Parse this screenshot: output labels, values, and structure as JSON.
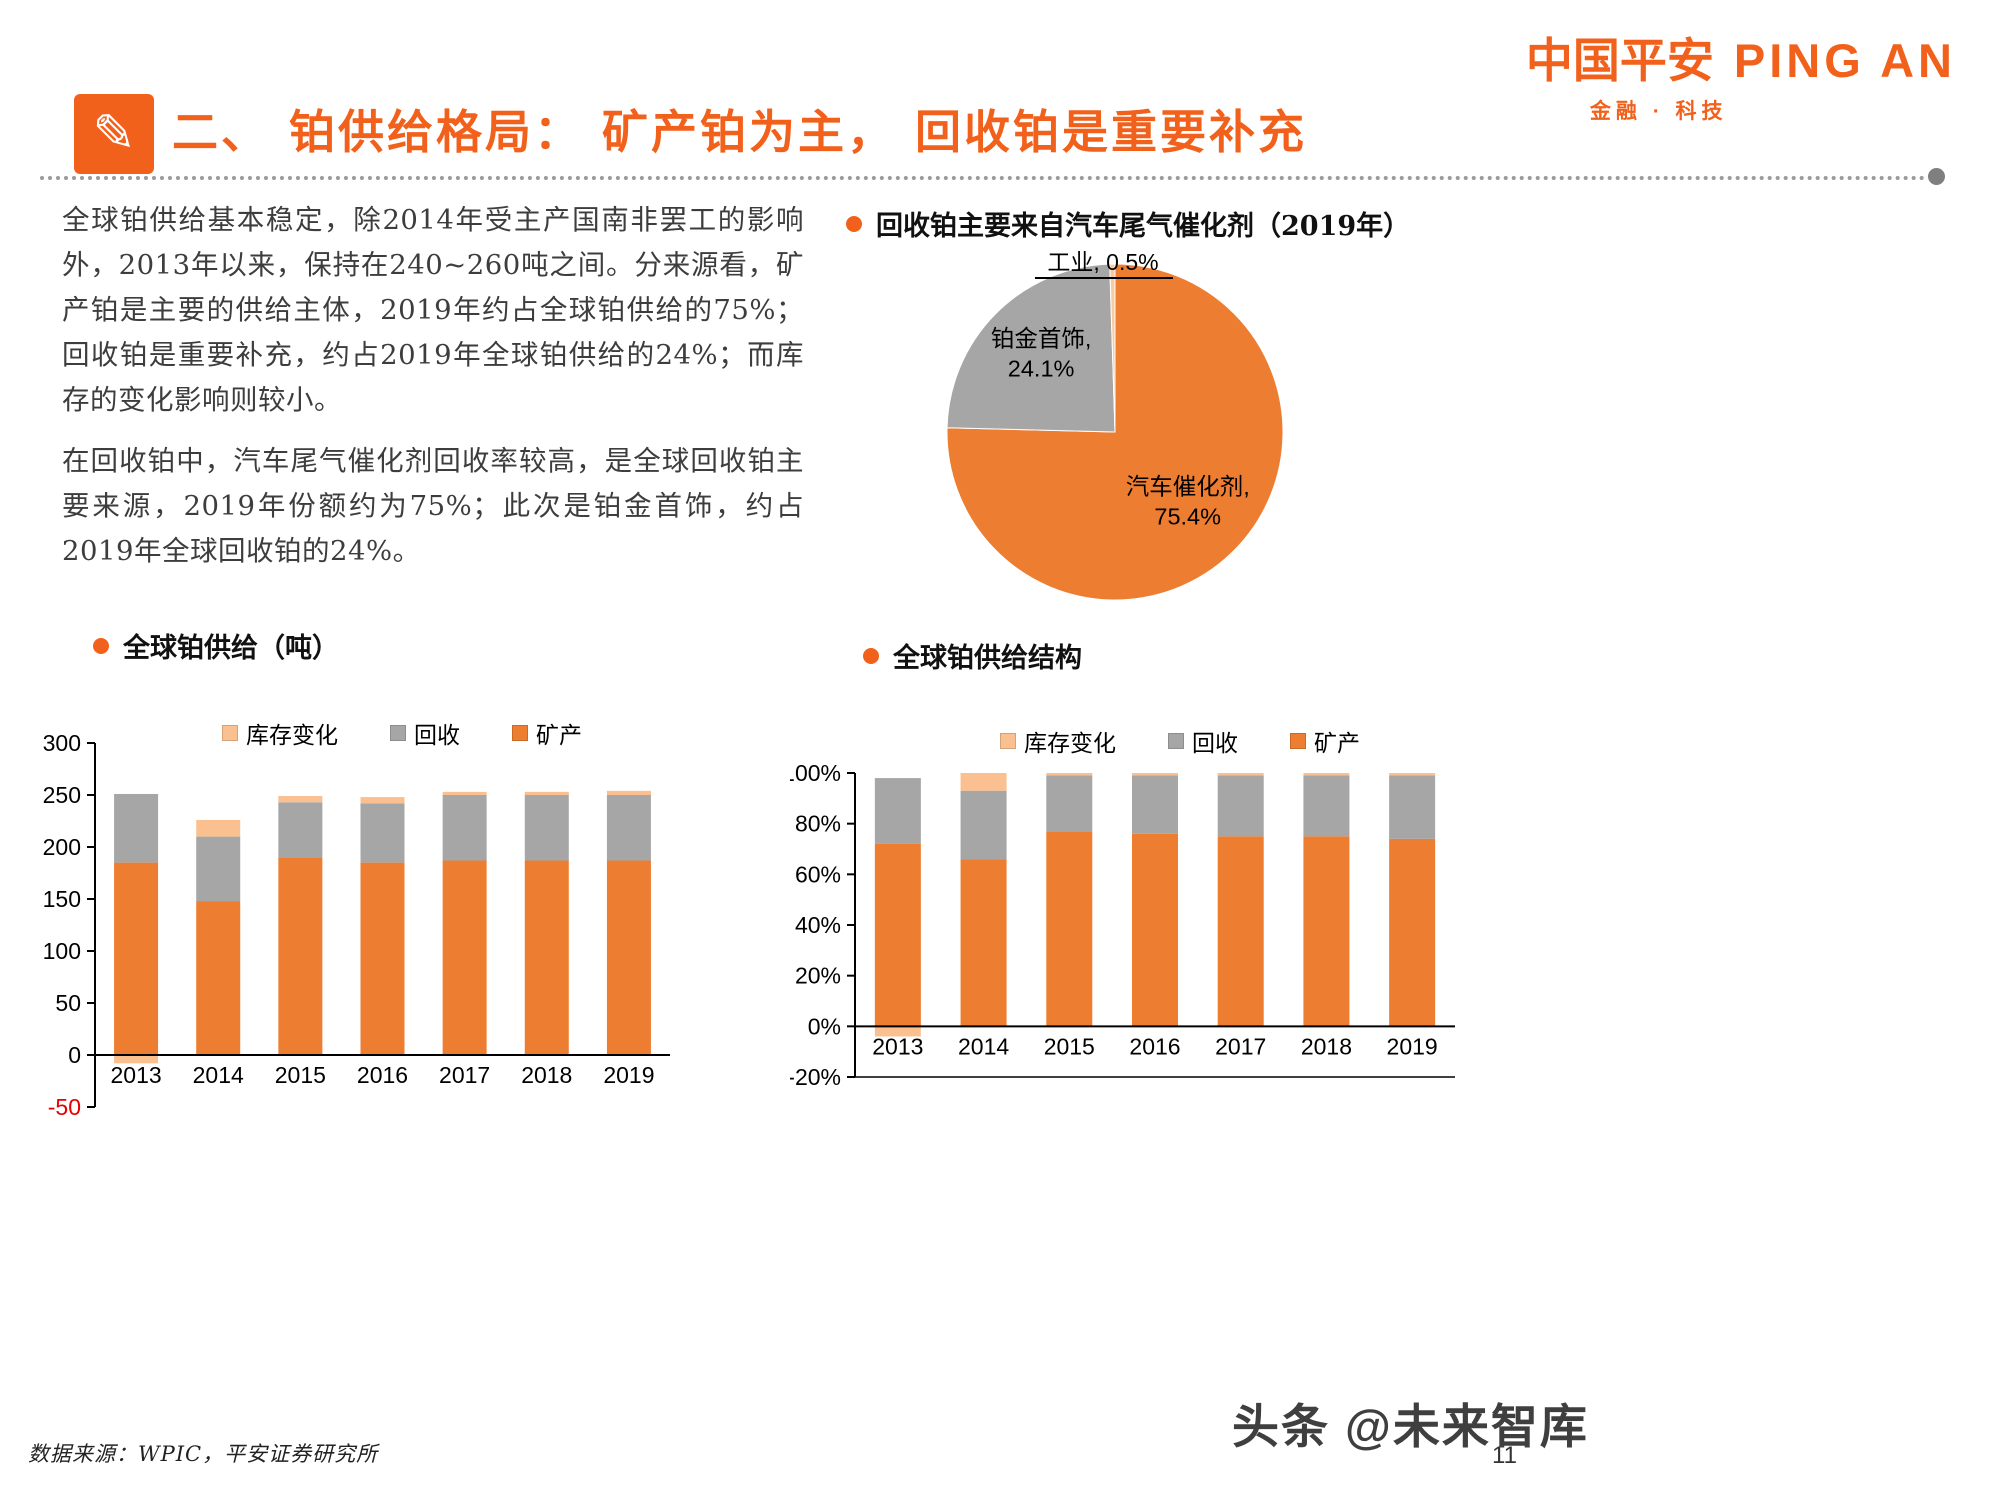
{
  "header": {
    "logo_cn": "中国平安",
    "logo_en": "PING AN",
    "logo_sub": "金融 · 科技"
  },
  "title": {
    "text": "二、 铂供给格局： 矿产铂为主， 回收铂是重要补充"
  },
  "paragraphs": {
    "p1": "全球铂供给基本稳定，除2014年受主产国南非罢工的影响外，2013年以来，保持在240~260吨之间。分来源看，矿产铂是主要的供给主体，2019年约占全球铂供给的75%；回收铂是重要补充，约占2019年全球铂供给的24%；而库存的变化影响则较小。",
    "p2": "在回收铂中，汽车尾气催化剂回收率较高，是全球回收铂主要来源，2019年份额约为75%；此次是铂金首饰，约占2019年全球回收铂的24%。"
  },
  "colors": {
    "brand_orange": "#F2611C",
    "bar_orange": "#ED7D31",
    "bar_gray": "#A6A6A6",
    "bar_light_orange": "#FAC090"
  },
  "chart_data": [
    {
      "id": "recycle_pie",
      "type": "pie",
      "title": "回收铂主要来自汽车尾气催化剂（2019年）",
      "slices": [
        {
          "label": "汽车催化剂",
          "value": 75.4,
          "color": "#ED7D31",
          "display": "汽车催化剂,|75.4%"
        },
        {
          "label": "铂金首饰",
          "value": 24.1,
          "color": "#A6A6A6",
          "display": "铂金首饰,|24.1%"
        },
        {
          "label": "工业",
          "value": 0.5,
          "color": "#FBCBA0",
          "display": "工业, 0.5%"
        }
      ]
    },
    {
      "id": "supply_tonnes",
      "type": "bar",
      "title": "全球铂供给（吨）",
      "categories": [
        "2013",
        "2014",
        "2015",
        "2016",
        "2017",
        "2018",
        "2019"
      ],
      "series": [
        {
          "name": "矿产",
          "color": "#ED7D31",
          "values": [
            185,
            148,
            190,
            185,
            187,
            187,
            187
          ]
        },
        {
          "name": "回收",
          "color": "#A6A6A6",
          "values": [
            66,
            62,
            53,
            57,
            63,
            63,
            63
          ]
        },
        {
          "name": "库存变化",
          "color": "#FAC090",
          "values": [
            -8,
            16,
            6,
            6,
            3,
            3,
            4
          ]
        }
      ],
      "legend_order": [
        "库存变化",
        "回收",
        "矿产"
      ],
      "ylim": [
        -50,
        300
      ],
      "ytick_step": 50,
      "percent": false
    },
    {
      "id": "supply_structure",
      "type": "bar",
      "title": "全球铂供给结构",
      "categories": [
        "2013",
        "2014",
        "2015",
        "2016",
        "2017",
        "2018",
        "2019"
      ],
      "series": [
        {
          "name": "矿产",
          "color": "#ED7D31",
          "values": [
            72,
            66,
            77,
            76,
            75,
            75,
            74
          ]
        },
        {
          "name": "回收",
          "color": "#A6A6A6",
          "values": [
            26,
            27,
            22,
            23,
            24,
            24,
            25
          ]
        },
        {
          "name": "库存变化",
          "color": "#FAC090",
          "values": [
            -4,
            7,
            1,
            1,
            1,
            1,
            1
          ]
        }
      ],
      "legend_order": [
        "库存变化",
        "回收",
        "矿产"
      ],
      "ylim": [
        -20,
        100
      ],
      "ytick_step": 20,
      "percent": true
    }
  ],
  "footer": {
    "source": "数据来源：WPIC，平安证券研究所",
    "watermark": "头条 @未来智库",
    "page": "11"
  }
}
